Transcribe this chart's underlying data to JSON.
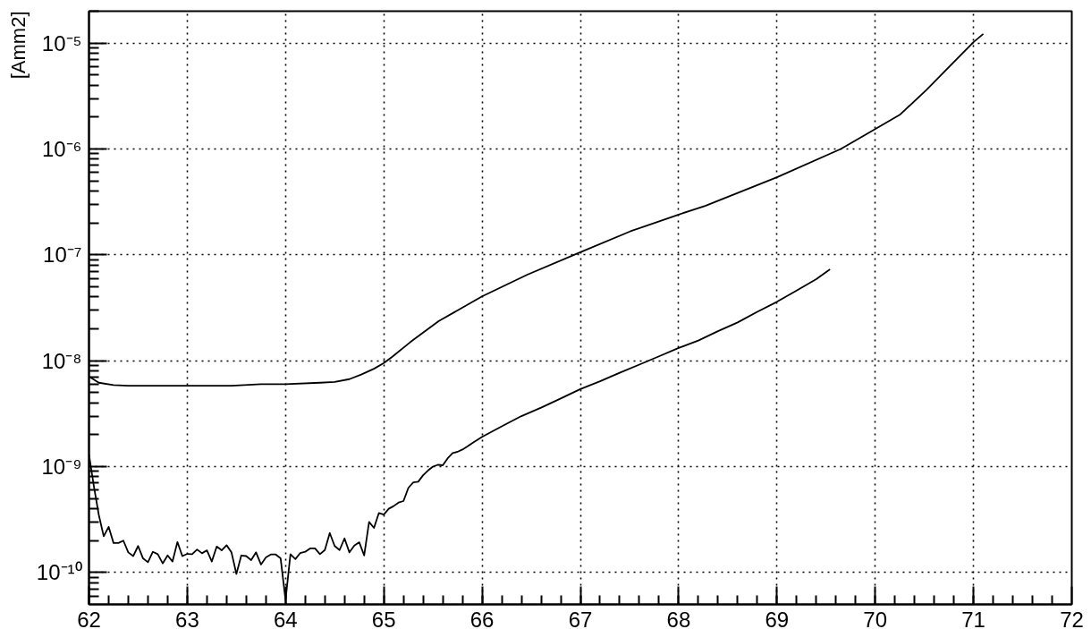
{
  "chart_data": {
    "type": "line",
    "ylabel": "[Amm2]",
    "log": "y",
    "grid": true,
    "line_style": "solid",
    "xlim": [
      62,
      72
    ],
    "xticks": [
      62,
      63,
      64,
      65,
      66,
      67,
      68,
      69,
      70,
      71,
      72
    ],
    "ylim": [
      5e-11,
      2e-05
    ],
    "yticks": [
      {
        "value": 1e-10,
        "label": "10⁻¹⁰"
      },
      {
        "value": 1e-09,
        "label": "10⁻⁹"
      },
      {
        "value": 1e-08,
        "label": "10⁻⁸"
      },
      {
        "value": 1e-07,
        "label": "10⁻⁷"
      },
      {
        "value": 1e-06,
        "label": "10⁻⁶"
      },
      {
        "value": 1e-05,
        "label": "10⁻⁵"
      }
    ],
    "series": [
      {
        "color": "#000000",
        "x": [
          62.0,
          62.1,
          62.25,
          62.4,
          62.7,
          63.0,
          63.45,
          63.75,
          64.0,
          64.35,
          64.5,
          64.65,
          64.77,
          64.9,
          65.0,
          65.08,
          65.27,
          65.56,
          66.0,
          66.46,
          67.0,
          67.51,
          68.0,
          68.27,
          69.0,
          69.65,
          70.0,
          70.25,
          70.52,
          70.82,
          71.0,
          71.1
        ],
        "values": [
          7.1e-09,
          6.2e-09,
          5.9e-09,
          5.8e-09,
          5.8e-09,
          5.8e-09,
          5.8e-09,
          6e-09,
          6e-09,
          6.2e-09,
          6.3e-09,
          6.7e-09,
          7.4e-09,
          8.4e-09,
          9.5e-09,
          1.08e-08,
          1.5e-08,
          2.37e-08,
          4.05e-08,
          6.5e-08,
          1.06e-07,
          1.67e-07,
          2.4e-07,
          2.9e-07,
          5.4e-07,
          1e-06,
          1.54e-06,
          2.1e-06,
          3.6e-06,
          6.9e-06,
          1.02e-05,
          1.22e-05
        ]
      },
      {
        "color": "#000000",
        "x": [
          62.0,
          62.05,
          62.1,
          62.15,
          62.2,
          62.25,
          62.3,
          62.35,
          62.4,
          62.45,
          62.5,
          62.55,
          62.6,
          62.65,
          62.7,
          62.75,
          62.8,
          62.85,
          62.9,
          62.95,
          63.0,
          63.05,
          63.1,
          63.15,
          63.2,
          63.25,
          63.3,
          63.35,
          63.4,
          63.45,
          63.5,
          63.55,
          63.6,
          63.65,
          63.7,
          63.75,
          63.8,
          63.85,
          63.9,
          63.95,
          64.0,
          64.05,
          64.1,
          64.15,
          64.2,
          64.25,
          64.3,
          64.35,
          64.4,
          64.45,
          64.5,
          64.55,
          64.6,
          64.65,
          64.7,
          64.75,
          64.8,
          64.85,
          64.9,
          64.95,
          65.0,
          65.05,
          65.1,
          65.15,
          65.2,
          65.25,
          65.3,
          65.35,
          65.4,
          65.45,
          65.5,
          65.55,
          65.6,
          65.65,
          65.7,
          65.75,
          65.8,
          65.85,
          65.9,
          66.0,
          66.2,
          66.4,
          66.6,
          66.8,
          67.0,
          67.2,
          67.4,
          67.6,
          67.8,
          68.0,
          68.2,
          68.4,
          68.6,
          68.8,
          69.0,
          69.2,
          69.4,
          69.54
        ],
        "values": [
          1.3e-09,
          6.5e-10,
          3.5e-10,
          2.2e-10,
          2.7e-10,
          1.9e-10,
          1.9e-10,
          2e-10,
          1.55e-10,
          1.43e-10,
          1.78e-10,
          1.36e-10,
          1.25e-10,
          1.57e-10,
          1.49e-10,
          1.22e-10,
          1.45e-10,
          1.27e-10,
          1.94e-10,
          1.43e-10,
          1.5e-10,
          1.49e-10,
          1.65e-10,
          1.52e-10,
          1.62e-10,
          1.27e-10,
          1.76e-10,
          1.62e-10,
          1.81e-10,
          1.55e-10,
          9.7e-11,
          1.45e-10,
          1.43e-10,
          1.31e-10,
          1.55e-10,
          1.19e-10,
          1.39e-10,
          1.48e-10,
          1.48e-10,
          1.36e-10,
          5.5e-11,
          1.49e-10,
          1.34e-10,
          1.53e-10,
          1.57e-10,
          1.69e-10,
          1.69e-10,
          1.49e-10,
          1.63e-10,
          2.36e-10,
          1.78e-10,
          1.63e-10,
          2.1e-10,
          1.55e-10,
          1.8e-10,
          1.93e-10,
          1.45e-10,
          3e-10,
          2.64e-10,
          3.65e-10,
          3.53e-10,
          4e-10,
          4.24e-10,
          4.58e-10,
          4.73e-10,
          6.3e-10,
          7.1e-10,
          7.2e-10,
          8.3e-10,
          9.2e-10,
          1e-09,
          1.04e-09,
          1.03e-09,
          1.2e-09,
          1.34e-09,
          1.38e-09,
          1.45e-09,
          1.55e-09,
          1.67e-09,
          1.91e-09,
          2.4e-09,
          3e-09,
          3.6e-09,
          4.4e-09,
          5.4e-09,
          6.4e-09,
          7.7e-09,
          9.2e-09,
          1.1e-08,
          1.32e-08,
          1.55e-08,
          1.9e-08,
          2.3e-08,
          2.9e-08,
          3.6e-08,
          4.6e-08,
          5.9e-08,
          7.3e-08
        ]
      }
    ]
  }
}
